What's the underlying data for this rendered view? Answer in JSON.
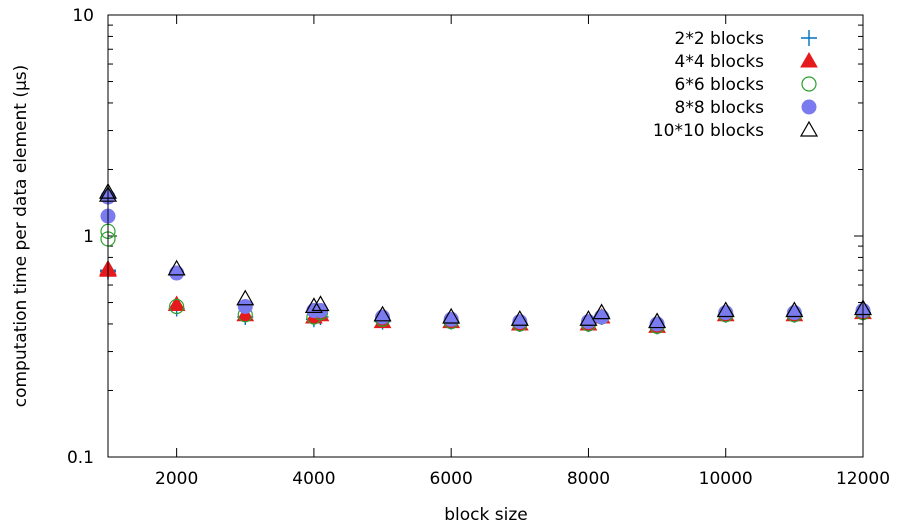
{
  "chart_data": {
    "type": "scatter",
    "title": "",
    "xlabel": "block size",
    "ylabel": "computation time per data element (μs)",
    "xlim": [
      1000,
      12000
    ],
    "ylim": [
      0.1,
      10
    ],
    "yscale": "log",
    "grid": false,
    "legend_position": "top-right",
    "x_ticks": [
      2000,
      4000,
      6000,
      8000,
      10000,
      12000
    ],
    "x_tick_labels": [
      "2000",
      "4000",
      "6000",
      "8000",
      "10000",
      "12000"
    ],
    "y_ticks": [
      0.1,
      1,
      10
    ],
    "y_tick_labels": [
      "0.1",
      "1",
      "10"
    ],
    "series": [
      {
        "name": "2*2 blocks",
        "marker": "plus",
        "color": "#0072bd",
        "points": [
          [
            1000,
            0.69
          ],
          [
            1000,
            0.7
          ],
          [
            2000,
            0.47
          ],
          [
            3000,
            0.43
          ],
          [
            4000,
            0.42
          ],
          [
            4096,
            0.43
          ],
          [
            5000,
            0.41
          ],
          [
            6000,
            0.41
          ],
          [
            7000,
            0.4
          ],
          [
            8000,
            0.4
          ],
          [
            8192,
            0.43
          ],
          [
            9000,
            0.39
          ],
          [
            10000,
            0.44
          ],
          [
            11000,
            0.44
          ],
          [
            12000,
            0.45
          ]
        ]
      },
      {
        "name": "4*4 blocks",
        "marker": "filled-triangle",
        "color": "#e41a1c",
        "points": [
          [
            1000,
            0.7
          ],
          [
            1000,
            0.71
          ],
          [
            2000,
            0.49
          ],
          [
            3000,
            0.44
          ],
          [
            4000,
            0.43
          ],
          [
            4096,
            0.44
          ],
          [
            5000,
            0.41
          ],
          [
            6000,
            0.41
          ],
          [
            7000,
            0.4
          ],
          [
            8000,
            0.4
          ],
          [
            8192,
            0.43
          ],
          [
            9000,
            0.39
          ],
          [
            10000,
            0.44
          ],
          [
            11000,
            0.44
          ],
          [
            12000,
            0.45
          ]
        ]
      },
      {
        "name": "6*6 blocks",
        "marker": "open-circle",
        "color": "#2ca02c",
        "points": [
          [
            1000,
            1.05
          ],
          [
            1000,
            0.97
          ],
          [
            2000,
            0.48
          ],
          [
            3000,
            0.44
          ],
          [
            4000,
            0.43
          ],
          [
            4096,
            0.45
          ],
          [
            5000,
            0.42
          ],
          [
            6000,
            0.41
          ],
          [
            7000,
            0.4
          ],
          [
            8000,
            0.4
          ],
          [
            8192,
            0.43
          ],
          [
            9000,
            0.39
          ],
          [
            10000,
            0.44
          ],
          [
            11000,
            0.44
          ],
          [
            12000,
            0.45
          ]
        ]
      },
      {
        "name": "8*8 blocks",
        "marker": "filled-circle",
        "color": "#7b7bf0",
        "points": [
          [
            1000,
            1.5
          ],
          [
            1000,
            1.23
          ],
          [
            2000,
            0.68
          ],
          [
            3000,
            0.48
          ],
          [
            4000,
            0.46
          ],
          [
            4096,
            0.46
          ],
          [
            5000,
            0.43
          ],
          [
            6000,
            0.42
          ],
          [
            7000,
            0.41
          ],
          [
            8000,
            0.41
          ],
          [
            8192,
            0.43
          ],
          [
            9000,
            0.4
          ],
          [
            10000,
            0.45
          ],
          [
            11000,
            0.45
          ],
          [
            12000,
            0.46
          ]
        ]
      },
      {
        "name": "10*10 blocks",
        "marker": "open-triangle",
        "color": "#000000",
        "points": [
          [
            1000,
            1.58
          ],
          [
            1000,
            1.53
          ],
          [
            2000,
            0.71
          ],
          [
            3000,
            0.52
          ],
          [
            4000,
            0.48
          ],
          [
            4096,
            0.49
          ],
          [
            5000,
            0.44
          ],
          [
            6000,
            0.43
          ],
          [
            7000,
            0.42
          ],
          [
            8000,
            0.42
          ],
          [
            8192,
            0.45
          ],
          [
            9000,
            0.41
          ],
          [
            10000,
            0.46
          ],
          [
            11000,
            0.46
          ],
          [
            12000,
            0.47
          ]
        ]
      }
    ]
  }
}
